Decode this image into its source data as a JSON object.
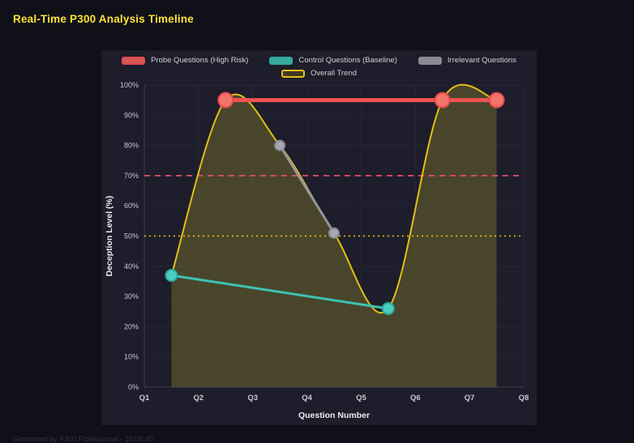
{
  "page": {
    "title": "Real-Time P300 Analysis Timeline",
    "footer": "Generated by P300 Professional - 10:05:45"
  },
  "colors": {
    "background": "#101019",
    "panel": "#1d1d2b",
    "title": "#ffe135",
    "grid": "#262639",
    "axis": "#3a3a4e",
    "tick_text": "#c9c9d4",
    "axis_label": "#eceef2"
  },
  "chart_data": {
    "type": "line",
    "title": "Real-Time P300 Analysis Timeline",
    "xlabel": "Question Number",
    "ylabel": "Deception Level (%)",
    "x_ticks": [
      "Q1",
      "Q2",
      "Q3",
      "Q4",
      "Q5",
      "Q6",
      "Q7",
      "Q8"
    ],
    "x_range": [
      1,
      8
    ],
    "ylim": [
      0,
      100
    ],
    "y_tick_step": 10,
    "y_tick_suffix": "%",
    "grid": true,
    "legend_position": "top",
    "series": [
      {
        "name": "Probe Questions (High Risk)",
        "color": "#ef5350",
        "x": [
          2.5,
          6.5,
          7.5
        ],
        "y": [
          95,
          95,
          95
        ],
        "line_width": 5,
        "marker_radius": 9,
        "marker_fill": "#f4736a",
        "marker_stroke": "#e5484d",
        "swatch": {
          "fill": "rgba(244,99,90,0.85)",
          "border": "#e5484d"
        }
      },
      {
        "name": "Control Questions (Baseline)",
        "color": "#3cc3b4",
        "x": [
          1.5,
          5.5
        ],
        "y": [
          37,
          26
        ],
        "line_width": 3,
        "marker_radius": 7,
        "marker_fill": "#49cfc0",
        "marker_stroke": "#2fa99b",
        "swatch": {
          "fill": "rgba(61,196,182,0.85)",
          "border": "#2fa99b"
        }
      },
      {
        "name": "Irrelevant Questions",
        "color": "#95959f",
        "x": [
          3.5,
          4.5
        ],
        "y": [
          80,
          51
        ],
        "line_width": 3,
        "marker_radius": 6,
        "marker_fill": "#a8a8b2",
        "marker_stroke": "#8a8a95",
        "swatch": {
          "fill": "rgba(158,158,168,0.85)",
          "border": "#8a8a95"
        }
      },
      {
        "name": "Overall Trend",
        "color": "#e3bf12",
        "x": [
          1.5,
          2.5,
          3.5,
          4.5,
          5.5,
          6.5,
          7.5
        ],
        "y": [
          37,
          95,
          80,
          51,
          26,
          95,
          95
        ],
        "line_width": 2,
        "smooth": true,
        "fill": "rgba(140,130,45,0.40)",
        "marker_radius": 0,
        "swatch": {
          "fill": "rgba(227,191,18,0.18)",
          "border": "#e3bf12"
        }
      }
    ],
    "thresholds": [
      {
        "y": 70,
        "color": "#e74c6c",
        "dash": "7 6"
      },
      {
        "y": 50,
        "color": "#d6b50c",
        "dash": "2 4"
      }
    ]
  }
}
